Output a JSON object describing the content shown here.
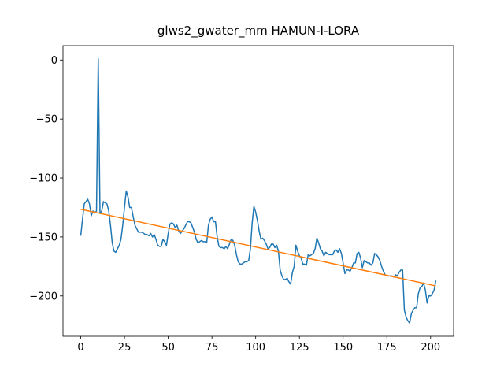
{
  "chart_data": {
    "type": "line",
    "title": "glws2_gwater_mm HAMUN-I-LORA",
    "xlim": [
      -10.15,
      213.15
    ],
    "ylim": [
      -234.2,
      12.2
    ],
    "xticks": [
      0,
      25,
      50,
      75,
      100,
      125,
      150,
      175,
      200
    ],
    "yticks": [
      0,
      {
        "value": -50,
        "label": "−50"
      },
      {
        "value": -100,
        "label": "−100"
      },
      {
        "value": -150,
        "label": "−150"
      },
      {
        "value": -200,
        "label": "−200"
      }
    ],
    "grid": false,
    "series": [
      {
        "color": "#1f77b4",
        "x": [
          0,
          1,
          2,
          3,
          4,
          5,
          6,
          7,
          8,
          9,
          10,
          11,
          12,
          13,
          14,
          15,
          16,
          17,
          18,
          19,
          20,
          21,
          22,
          23,
          24,
          25,
          26,
          27,
          28,
          29,
          30,
          31,
          32,
          33,
          34,
          35,
          36,
          37,
          38,
          39,
          40,
          41,
          42,
          43,
          44,
          45,
          46,
          47,
          48,
          49,
          50,
          51,
          52,
          53,
          54,
          55,
          56,
          57,
          58,
          59,
          60,
          61,
          62,
          63,
          64,
          65,
          66,
          67,
          68,
          69,
          70,
          71,
          72,
          73,
          74,
          75,
          76,
          77,
          78,
          79,
          80,
          81,
          82,
          83,
          84,
          85,
          86,
          87,
          88,
          89,
          90,
          91,
          92,
          93,
          94,
          95,
          96,
          97,
          98,
          99,
          100,
          101,
          102,
          103,
          104,
          105,
          106,
          107,
          108,
          109,
          110,
          111,
          112,
          113,
          114,
          115,
          116,
          117,
          118,
          119,
          120,
          121,
          122,
          123,
          124,
          125,
          126,
          127,
          128,
          129,
          130,
          131,
          132,
          133,
          134,
          135,
          136,
          137,
          138,
          139,
          140,
          141,
          142,
          143,
          144,
          145,
          146,
          147,
          148,
          149,
          150,
          151,
          152,
          153,
          154,
          155,
          156,
          157,
          158,
          159,
          160,
          161,
          162,
          163,
          164,
          165,
          166,
          167,
          168,
          169,
          170,
          171,
          172,
          173,
          174,
          175,
          176,
          177,
          178,
          179,
          180,
          181,
          182,
          183,
          184,
          185,
          186,
          187,
          188,
          189,
          190,
          191,
          192,
          193,
          194,
          195,
          196,
          197,
          198,
          199,
          200,
          201,
          202,
          203
        ],
        "values": [
          -149,
          -135,
          -122,
          -120,
          -118,
          -122,
          -132,
          -128,
          -130,
          -128,
          1,
          -130,
          -128,
          -120,
          -121,
          -122,
          -128,
          -140,
          -155,
          -162,
          -163,
          -160,
          -157,
          -152,
          -140,
          -125,
          -111,
          -116,
          -125,
          -125,
          -133,
          -140,
          -143,
          -146,
          -146,
          -146,
          -147,
          -148,
          -148,
          -149,
          -147,
          -150,
          -148,
          -152,
          -157,
          -158,
          -158,
          -152,
          -154,
          -157,
          -147,
          -139,
          -138,
          -139,
          -142,
          -140,
          -145,
          -147,
          -145,
          -143,
          -140,
          -137,
          -137,
          -138,
          -142,
          -146,
          -152,
          -155,
          -154,
          -153,
          -154,
          -154,
          -155,
          -140,
          -135,
          -133,
          -137,
          -137,
          -150,
          -158,
          -159,
          -159,
          -160,
          -158,
          -160,
          -156,
          -152,
          -153,
          -157,
          -165,
          -171,
          -173,
          -173,
          -172,
          -171,
          -171,
          -170,
          -160,
          -138,
          -124,
          -129,
          -136,
          -145,
          -152,
          -151,
          -153,
          -156,
          -160,
          -159,
          -156,
          -156,
          -159,
          -157,
          -162,
          -178,
          -183,
          -186,
          -186,
          -185,
          -188,
          -190,
          -180,
          -175,
          -157,
          -162,
          -166,
          -168,
          -173,
          -173,
          -174,
          -165,
          -166,
          -165,
          -164,
          -160,
          -151,
          -155,
          -160,
          -162,
          -166,
          -163,
          -164,
          -165,
          -165,
          -165,
          -162,
          -161,
          -163,
          -160,
          -164,
          -172,
          -181,
          -178,
          -178,
          -179,
          -176,
          -172,
          -172,
          -164,
          -163,
          -168,
          -176,
          -170,
          -171,
          -172,
          -172,
          -174,
          -172,
          -164,
          -165,
          -167,
          -170,
          -175,
          -179,
          -182,
          -183,
          -183,
          -183,
          -183,
          -184,
          -182,
          -183,
          -180,
          -178,
          -178,
          -212,
          -218,
          -221,
          -223,
          -215,
          -212,
          -210,
          -210,
          -198,
          -193,
          -192,
          -189,
          -195,
          -206,
          -200,
          -200,
          -198,
          -195,
          -187
        ]
      },
      {
        "color": "#ff7f0e",
        "x": [
          0,
          203
        ],
        "values": [
          -126.5,
          -191.5
        ]
      }
    ]
  }
}
